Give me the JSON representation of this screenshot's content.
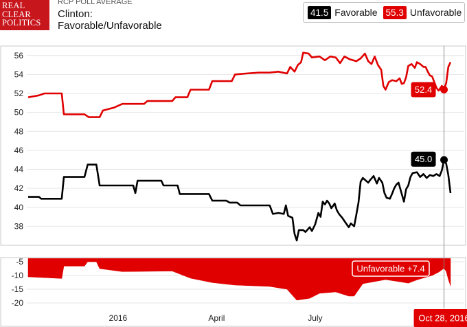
{
  "brand": {
    "logo_lines": [
      "REAL",
      "CLEAR",
      "POLITICS"
    ],
    "kicker": "RCP POLL AVERAGE",
    "title_line1": "Clinton:",
    "title_line2": "Favorable/Unfavorable"
  },
  "legend": {
    "favorable": {
      "value": "41.5",
      "label": "Favorable",
      "color": "#000000"
    },
    "unfavorable": {
      "value": "55.3",
      "label": "Unfavorable",
      "color": "#e00000"
    }
  },
  "chart_data": {
    "type": "line",
    "x_axis": {
      "tick_labels": [
        "2016",
        "April",
        "July",
        "Oct 28, 2016"
      ],
      "unit": "date"
    },
    "main_panel": {
      "ylim": [
        36,
        57
      ],
      "yticks": [
        38,
        40,
        42,
        44,
        46,
        48,
        50,
        52,
        54,
        56
      ],
      "grid": true,
      "series": [
        {
          "name": "Unfavorable",
          "color": "#e00000",
          "points": [
            [
              "2015-10-10",
              51.6
            ],
            [
              "2015-10-20",
              51.8
            ],
            [
              "2015-10-25",
              52.0
            ],
            [
              "2015-11-10",
              52.0
            ],
            [
              "2015-11-12",
              49.8
            ],
            [
              "2015-12-01",
              49.8
            ],
            [
              "2015-12-05",
              49.5
            ],
            [
              "2015-12-15",
              49.5
            ],
            [
              "2015-12-18",
              50.2
            ],
            [
              "2015-12-28",
              50.5
            ],
            [
              "2016-01-05",
              50.9
            ],
            [
              "2016-01-25",
              50.9
            ],
            [
              "2016-01-28",
              51.2
            ],
            [
              "2016-02-20",
              51.2
            ],
            [
              "2016-02-23",
              51.6
            ],
            [
              "2016-03-05",
              51.6
            ],
            [
              "2016-03-08",
              52.4
            ],
            [
              "2016-03-25",
              52.4
            ],
            [
              "2016-03-28",
              53.3
            ],
            [
              "2016-04-15",
              53.3
            ],
            [
              "2016-04-18",
              54.0
            ],
            [
              "2016-04-28",
              54.1
            ],
            [
              "2016-05-10",
              54.2
            ],
            [
              "2016-05-20",
              54.2
            ],
            [
              "2016-05-28",
              54.3
            ],
            [
              "2016-06-05",
              54.1
            ],
            [
              "2016-06-08",
              54.8
            ],
            [
              "2016-06-12",
              54.3
            ],
            [
              "2016-06-15",
              55.0
            ],
            [
              "2016-06-18",
              55.3
            ],
            [
              "2016-06-20",
              56.3
            ],
            [
              "2016-06-25",
              56.2
            ],
            [
              "2016-06-28",
              55.8
            ],
            [
              "2016-07-05",
              55.9
            ],
            [
              "2016-07-10",
              55.5
            ],
            [
              "2016-07-15",
              55.9
            ],
            [
              "2016-07-20",
              55.8
            ],
            [
              "2016-07-24",
              55.2
            ],
            [
              "2016-07-28",
              55.9
            ],
            [
              "2016-08-02",
              55.6
            ],
            [
              "2016-08-08",
              55.4
            ],
            [
              "2016-08-12",
              55.7
            ],
            [
              "2016-08-16",
              56.2
            ],
            [
              "2016-08-19",
              55.4
            ],
            [
              "2016-08-22",
              55.1
            ],
            [
              "2016-08-25",
              55.9
            ],
            [
              "2016-08-28",
              55.0
            ],
            [
              "2016-08-31",
              54.5
            ],
            [
              "2016-09-02",
              52.8
            ],
            [
              "2016-09-04",
              52.4
            ],
            [
              "2016-09-07",
              53.2
            ],
            [
              "2016-09-10",
              53.4
            ],
            [
              "2016-09-14",
              53.3
            ],
            [
              "2016-09-17",
              53.6
            ],
            [
              "2016-09-19",
              53.0
            ],
            [
              "2016-09-21",
              53.1
            ],
            [
              "2016-09-23",
              53.7
            ],
            [
              "2016-09-25",
              54.9
            ],
            [
              "2016-09-28",
              55.1
            ],
            [
              "2016-10-01",
              54.7
            ],
            [
              "2016-10-03",
              55.3
            ],
            [
              "2016-10-06",
              55.1
            ],
            [
              "2016-10-09",
              54.8
            ],
            [
              "2016-10-11",
              54.8
            ],
            [
              "2016-10-13",
              54.3
            ],
            [
              "2016-10-15",
              53.9
            ],
            [
              "2016-10-17",
              53.8
            ],
            [
              "2016-10-21",
              52.6
            ],
            [
              "2016-10-23",
              52.3
            ],
            [
              "2016-10-26",
              52.8
            ],
            [
              "2016-10-28",
              52.4
            ],
            [
              "2016-10-30",
              53.1
            ],
            [
              "2016-11-01",
              54.8
            ],
            [
              "2016-11-03",
              55.3
            ]
          ]
        },
        {
          "name": "Favorable",
          "color": "#000000",
          "points": [
            [
              "2015-10-10",
              41.1
            ],
            [
              "2015-10-20",
              41.1
            ],
            [
              "2015-10-22",
              40.9
            ],
            [
              "2015-11-10",
              40.9
            ],
            [
              "2015-11-12",
              43.2
            ],
            [
              "2015-12-01",
              43.2
            ],
            [
              "2015-12-04",
              44.5
            ],
            [
              "2015-12-12",
              44.5
            ],
            [
              "2015-12-15",
              42.3
            ],
            [
              "2016-01-15",
              42.3
            ],
            [
              "2016-01-17",
              41.5
            ],
            [
              "2016-01-19",
              42.8
            ],
            [
              "2016-02-10",
              42.8
            ],
            [
              "2016-02-12",
              42.3
            ],
            [
              "2016-02-25",
              42.3
            ],
            [
              "2016-02-27",
              41.4
            ],
            [
              "2016-03-25",
              41.4
            ],
            [
              "2016-03-28",
              40.7
            ],
            [
              "2016-04-10",
              40.7
            ],
            [
              "2016-04-13",
              40.5
            ],
            [
              "2016-04-20",
              40.5
            ],
            [
              "2016-04-23",
              40.2
            ],
            [
              "2016-05-20",
              40.2
            ],
            [
              "2016-05-23",
              39.3
            ],
            [
              "2016-05-28",
              39.4
            ],
            [
              "2016-06-02",
              39.3
            ],
            [
              "2016-06-04",
              40.2
            ],
            [
              "2016-06-06",
              39.1
            ],
            [
              "2016-06-10",
              38.9
            ],
            [
              "2016-06-12",
              37.2
            ],
            [
              "2016-06-14",
              36.5
            ],
            [
              "2016-06-16",
              37.6
            ],
            [
              "2016-06-20",
              37.6
            ],
            [
              "2016-06-22",
              37.4
            ],
            [
              "2016-06-26",
              37.9
            ],
            [
              "2016-06-28",
              37.5
            ],
            [
              "2016-07-01",
              38.2
            ],
            [
              "2016-07-04",
              39.4
            ],
            [
              "2016-07-06",
              39.0
            ],
            [
              "2016-07-08",
              40.6
            ],
            [
              "2016-07-10",
              40.3
            ],
            [
              "2016-07-12",
              40.7
            ],
            [
              "2016-07-14",
              40.4
            ],
            [
              "2016-07-16",
              39.9
            ],
            [
              "2016-07-19",
              40.4
            ],
            [
              "2016-07-21",
              39.7
            ],
            [
              "2016-07-23",
              39.3
            ],
            [
              "2016-07-26",
              38.9
            ],
            [
              "2016-07-29",
              38.4
            ],
            [
              "2016-08-01",
              37.9
            ],
            [
              "2016-08-03",
              38.3
            ],
            [
              "2016-08-06",
              38.0
            ],
            [
              "2016-08-08",
              39.2
            ],
            [
              "2016-08-10",
              40.5
            ],
            [
              "2016-08-12",
              42.7
            ],
            [
              "2016-08-14",
              43.1
            ],
            [
              "2016-08-17",
              42.8
            ],
            [
              "2016-08-19",
              42.6
            ],
            [
              "2016-08-21",
              42.9
            ],
            [
              "2016-08-24",
              43.3
            ],
            [
              "2016-08-27",
              42.5
            ],
            [
              "2016-08-29",
              43.1
            ],
            [
              "2016-09-01",
              42.6
            ],
            [
              "2016-09-03",
              41.5
            ],
            [
              "2016-09-05",
              41.0
            ],
            [
              "2016-09-08",
              40.9
            ],
            [
              "2016-09-10",
              41.4
            ],
            [
              "2016-09-12",
              42.0
            ],
            [
              "2016-09-14",
              42.4
            ],
            [
              "2016-09-16",
              42.6
            ],
            [
              "2016-09-19",
              41.4
            ],
            [
              "2016-09-21",
              40.6
            ],
            [
              "2016-09-23",
              41.9
            ],
            [
              "2016-09-25",
              42.3
            ],
            [
              "2016-09-27",
              43.2
            ],
            [
              "2016-09-29",
              43.6
            ],
            [
              "2016-10-03",
              43.7
            ],
            [
              "2016-10-06",
              43.2
            ],
            [
              "2016-10-09",
              43.5
            ],
            [
              "2016-10-12",
              43.1
            ],
            [
              "2016-10-15",
              43.4
            ],
            [
              "2016-10-18",
              43.3
            ],
            [
              "2016-10-21",
              43.5
            ],
            [
              "2016-10-24",
              43.3
            ],
            [
              "2016-10-26",
              43.9
            ],
            [
              "2016-10-28",
              45.0
            ],
            [
              "2016-10-30",
              44.6
            ],
            [
              "2016-11-01",
              43.4
            ],
            [
              "2016-11-03",
              41.5
            ]
          ]
        }
      ],
      "marker_labels": [
        {
          "series": "Unfavorable",
          "text": "52.4",
          "date": "2016-10-28",
          "value": 52.4
        },
        {
          "series": "Favorable",
          "text": "45.0",
          "date": "2016-10-28",
          "value": 45.0
        }
      ]
    },
    "spread_panel": {
      "name": "Spread",
      "color": "#e00000",
      "ylim": [
        -22,
        -3.5
      ],
      "yticks": [
        -5,
        -10,
        -15,
        -20
      ],
      "label": "Unfavorable +7.4",
      "points": [
        [
          "2015-10-10",
          -10.5
        ],
        [
          "2015-11-10",
          -11.1
        ],
        [
          "2015-11-12",
          -6.6
        ],
        [
          "2015-12-01",
          -6.6
        ],
        [
          "2015-12-04",
          -5.0
        ],
        [
          "2015-12-12",
          -5.0
        ],
        [
          "2015-12-15",
          -7.5
        ],
        [
          "2016-01-05",
          -8.6
        ],
        [
          "2016-02-20",
          -8.4
        ],
        [
          "2016-03-08",
          -11.0
        ],
        [
          "2016-03-28",
          -12.6
        ],
        [
          "2016-04-18",
          -13.5
        ],
        [
          "2016-05-20",
          -14.0
        ],
        [
          "2016-06-05",
          -15.0
        ],
        [
          "2016-06-14",
          -19.0
        ],
        [
          "2016-06-26",
          -18.3
        ],
        [
          "2016-07-05",
          -16.5
        ],
        [
          "2016-07-20",
          -16.0
        ],
        [
          "2016-08-01",
          -17.5
        ],
        [
          "2016-08-06",
          -17.5
        ],
        [
          "2016-08-14",
          -13.0
        ],
        [
          "2016-09-04",
          -11.5
        ],
        [
          "2016-09-19",
          -12.4
        ],
        [
          "2016-09-25",
          -12.8
        ],
        [
          "2016-10-03",
          -11.6
        ],
        [
          "2016-10-17",
          -10.0
        ],
        [
          "2016-10-23",
          -8.8
        ],
        [
          "2016-10-28",
          -7.4
        ],
        [
          "2016-10-30",
          -8.5
        ],
        [
          "2016-11-01",
          -11.4
        ],
        [
          "2016-11-03",
          -13.8
        ]
      ]
    },
    "cursor": {
      "date": "2016-10-28",
      "label": "Oct 28, 2016"
    }
  }
}
